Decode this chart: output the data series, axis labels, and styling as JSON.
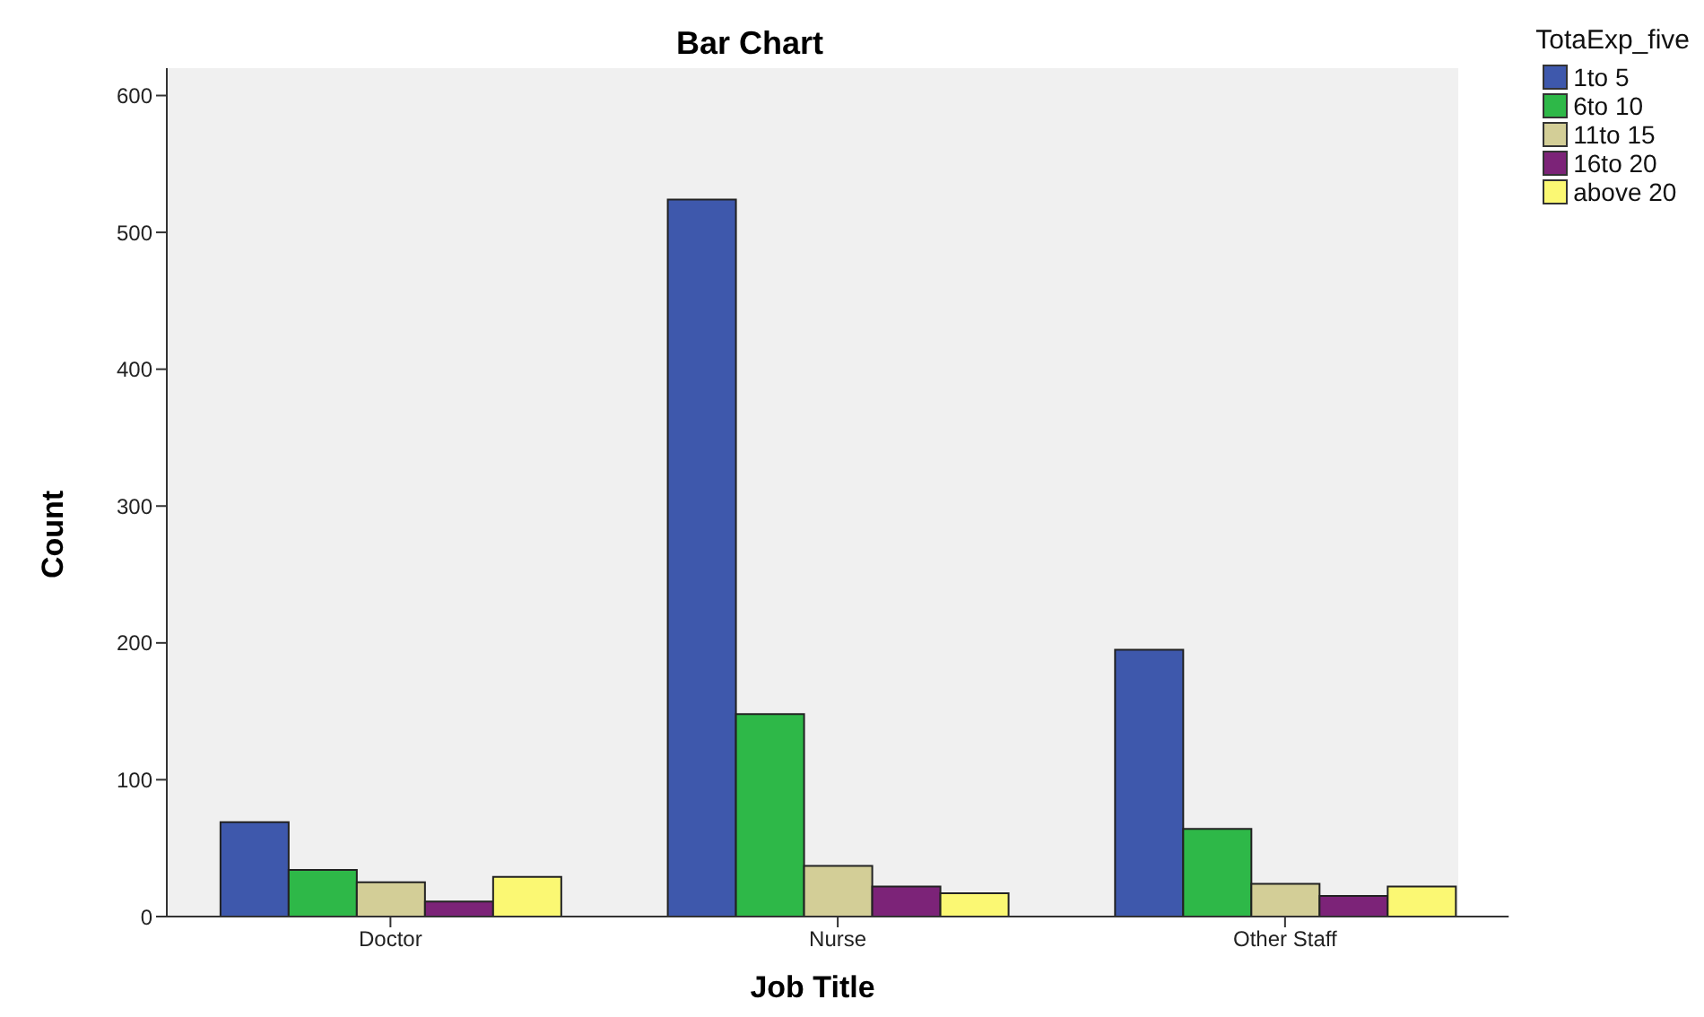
{
  "chart_data": {
    "type": "bar",
    "title": "Bar Chart",
    "xlabel": "Job Title",
    "ylabel": "Count",
    "legend_title": "TotaExp_five",
    "categories": [
      "Doctor",
      "Nurse",
      "Other Staff"
    ],
    "series": [
      {
        "name": "1to 5",
        "color": "#3e58ac",
        "values": [
          69,
          524,
          195
        ]
      },
      {
        "name": "6to 10",
        "color": "#2eb848",
        "values": [
          34,
          148,
          64
        ]
      },
      {
        "name": "11to 15",
        "color": "#d3ce97",
        "values": [
          25,
          37,
          24
        ]
      },
      {
        "name": "16to 20",
        "color": "#7c2378",
        "values": [
          11,
          22,
          15
        ]
      },
      {
        "name": "above 20",
        "color": "#fbf873",
        "values": [
          29,
          17,
          22
        ]
      }
    ],
    "ylim": [
      0,
      620
    ],
    "yticks": [
      0,
      100,
      200,
      300,
      400,
      500,
      600
    ],
    "legend": "top right"
  }
}
